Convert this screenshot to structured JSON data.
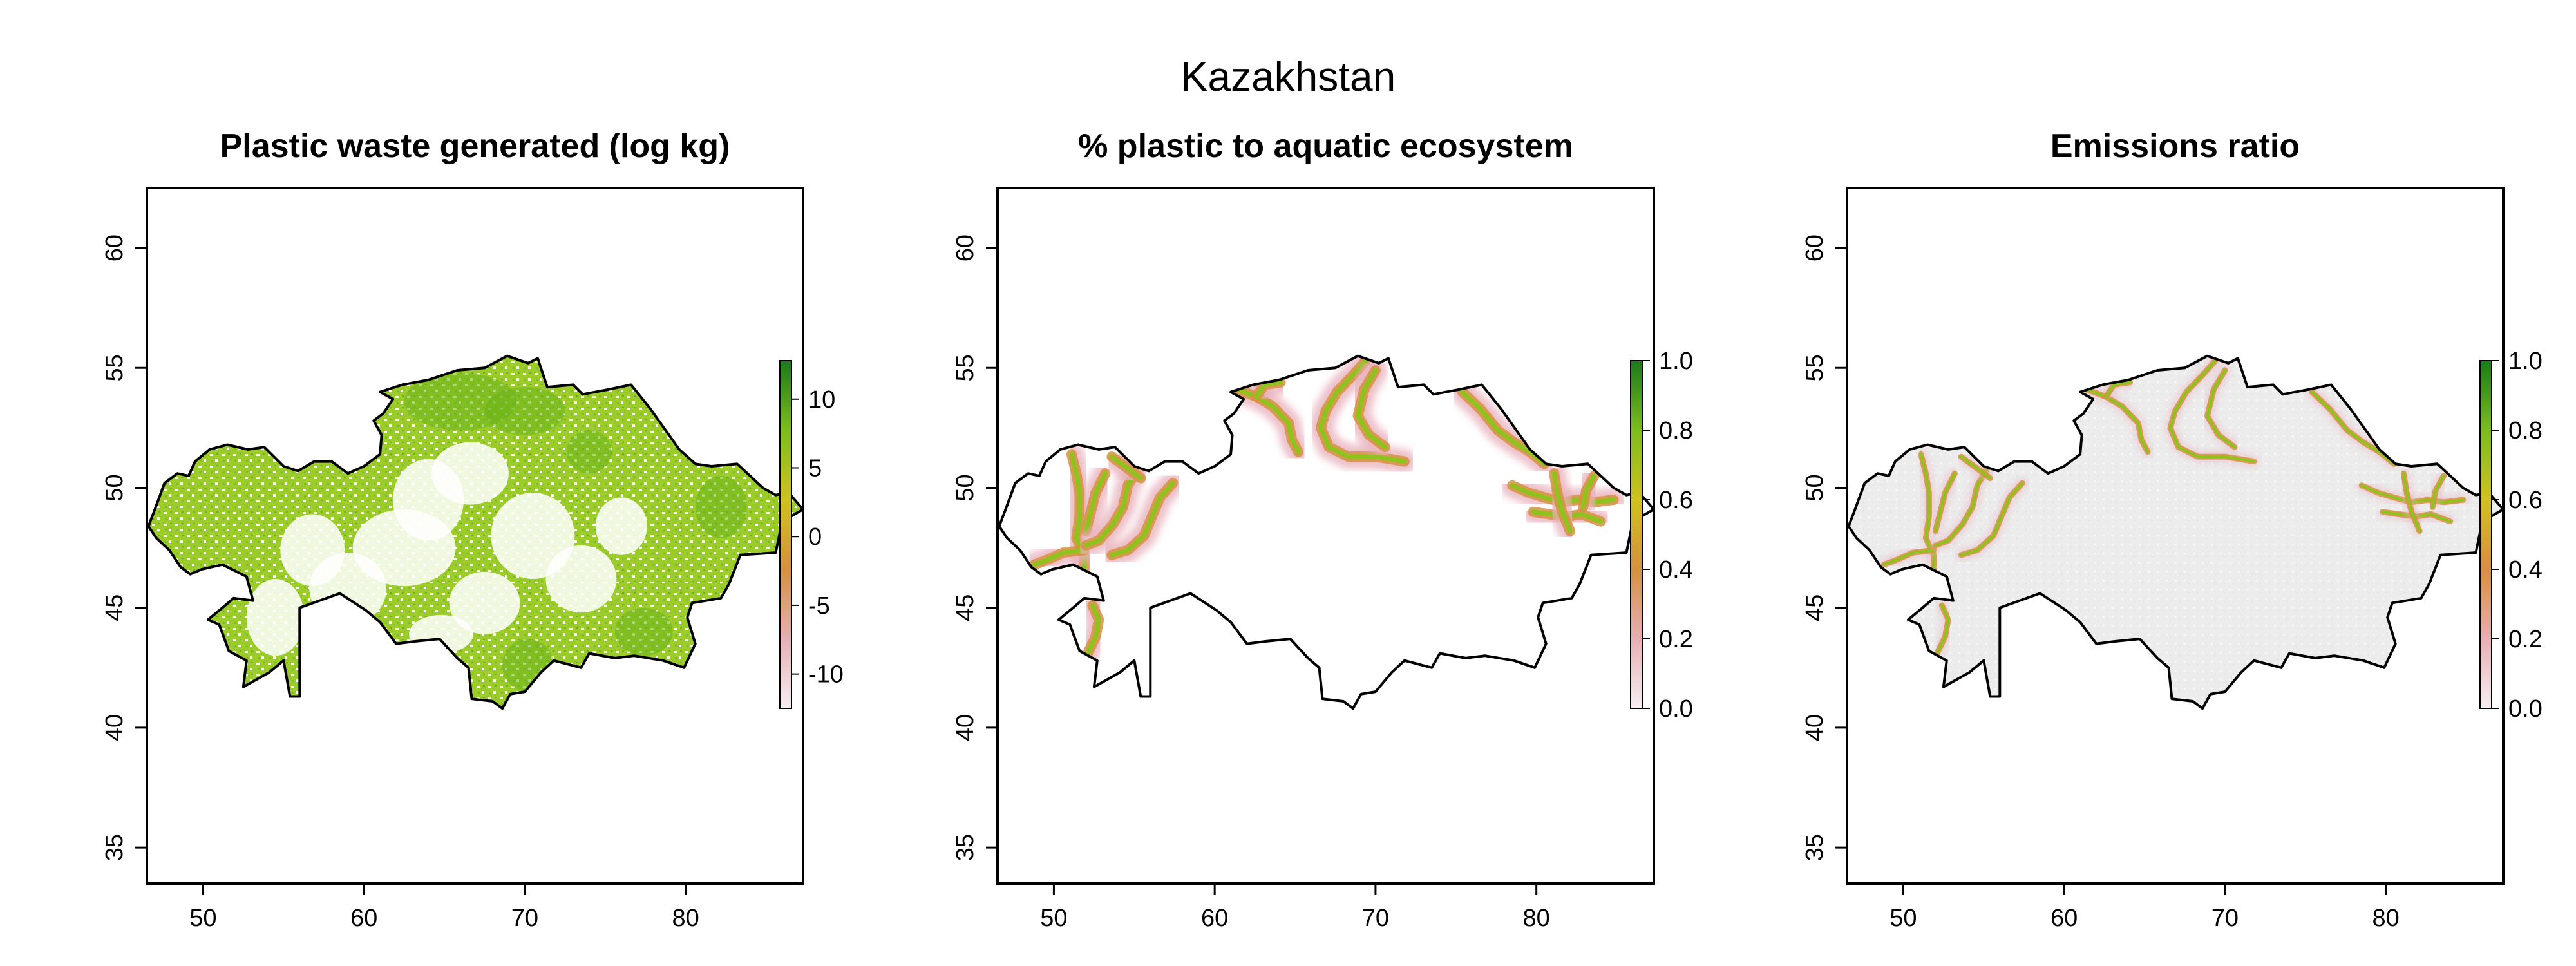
{
  "figure": {
    "title": "Kazakhstan"
  },
  "colors": {
    "outline": "#000000",
    "ramp_high": "#1a7a1a",
    "ramp_mid_green": "#8cc21a",
    "ramp_yellow": "#d4c21a",
    "ramp_orange": "#d08a3a",
    "ramp_pink": "#e8b4b4",
    "ramp_low": "#f4e8ec",
    "background_fill": "#ececec"
  },
  "chart_data": [
    {
      "type": "heatmap",
      "title": "Plastic waste generated (log kg)",
      "xlim": [
        46.5,
        87.3
      ],
      "ylim": [
        33.5,
        62.5
      ],
      "x_ticks": [
        "50",
        "60",
        "70",
        "80"
      ],
      "y_ticks": [
        "35",
        "40",
        "45",
        "50",
        "55",
        "60"
      ],
      "colorbar": {
        "range": [
          -12.5,
          12.8
        ],
        "ticks": [
          "10",
          "5",
          "0",
          "-5",
          "-10"
        ]
      },
      "fill": "dense"
    },
    {
      "type": "heatmap",
      "title": "% plastic to aquatic ecosystem",
      "xlim": [
        46.5,
        87.3
      ],
      "ylim": [
        33.5,
        62.5
      ],
      "x_ticks": [
        "50",
        "60",
        "70",
        "80"
      ],
      "y_ticks": [
        "35",
        "40",
        "45",
        "50",
        "55",
        "60"
      ],
      "colorbar": {
        "range": [
          0.0,
          1.0
        ],
        "ticks": [
          "1.0",
          "0.8",
          "0.6",
          "0.4",
          "0.2",
          "0.0"
        ]
      },
      "fill": "rivers"
    },
    {
      "type": "heatmap",
      "title": "Emissions ratio",
      "xlim": [
        46.5,
        87.3
      ],
      "ylim": [
        33.5,
        62.5
      ],
      "x_ticks": [
        "50",
        "60",
        "70",
        "80"
      ],
      "y_ticks": [
        "35",
        "40",
        "45",
        "50",
        "55",
        "60"
      ],
      "colorbar": {
        "range": [
          0.0,
          1.0
        ],
        "ticks": [
          "1.0",
          "0.8",
          "0.6",
          "0.4",
          "0.2",
          "0.0"
        ]
      },
      "fill": "rivers_on_grey"
    }
  ]
}
